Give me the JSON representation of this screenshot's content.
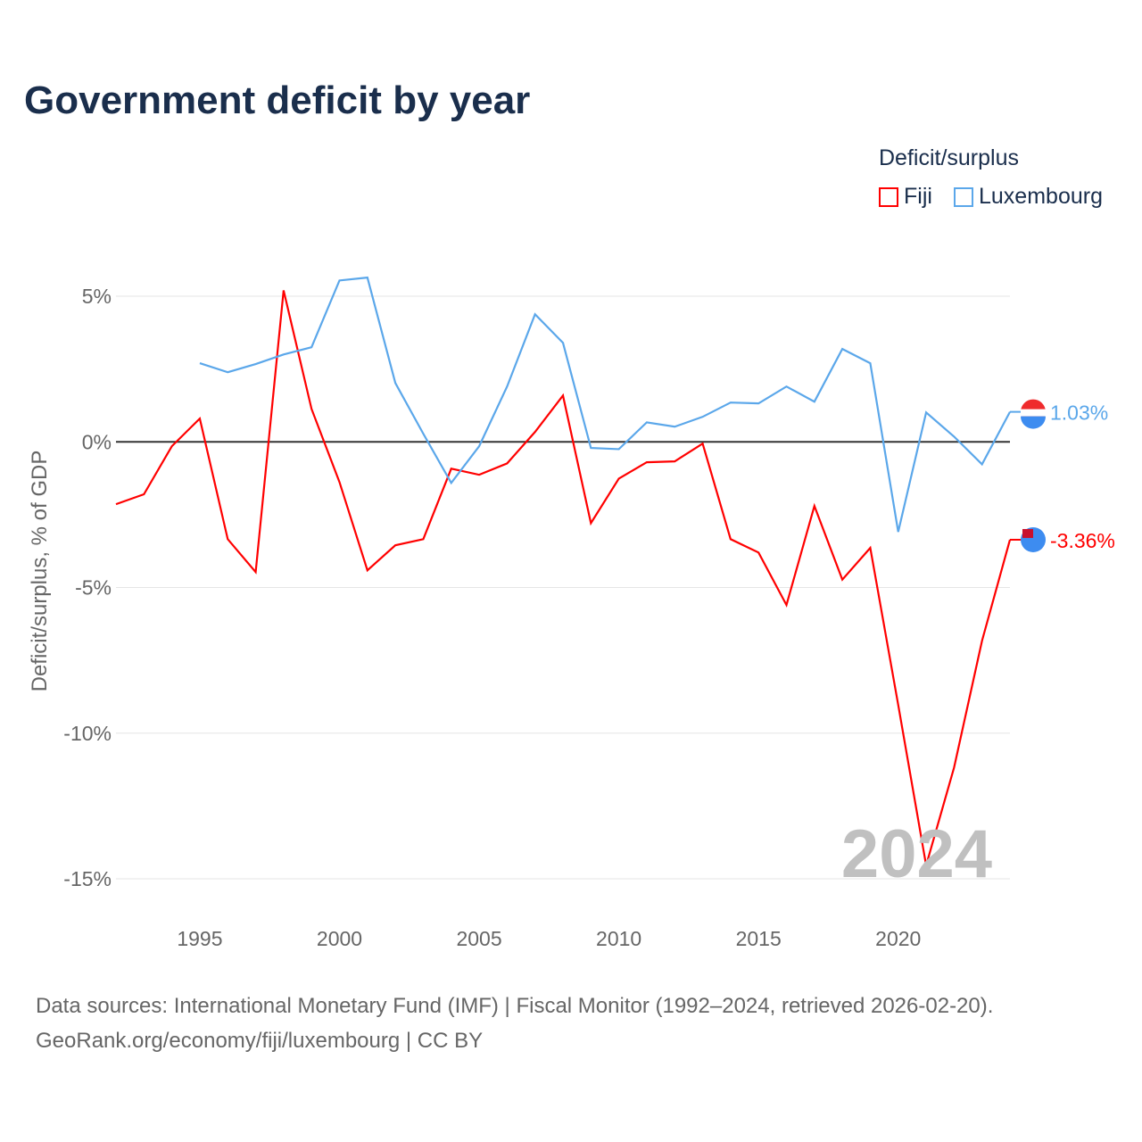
{
  "title": "Government deficit by year",
  "legend": {
    "title": "Deficit/surplus",
    "items": [
      "Fiji",
      "Luxembourg"
    ]
  },
  "watermark_year": "2024",
  "source": {
    "line1": "Data sources: International Monetary Fund (IMF) | Fiscal Monitor (1992–2024, retrieved 2026-02-20).",
    "line2": "GeoRank.org/economy/fiji/luxembourg | CC BY"
  },
  "chart_data": {
    "type": "line",
    "title": "Government deficit by year",
    "ylabel": "Deficit/surplus, % of GDP",
    "xlabel": "",
    "xlim": [
      1992,
      2024
    ],
    "ylim": [
      -15,
      5
    ],
    "yticks": [
      5,
      0,
      -5,
      -10,
      -15
    ],
    "ytick_labels": [
      "5%",
      "0%",
      "-5%",
      "-10%",
      "-15%"
    ],
    "xticks": [
      1995,
      2000,
      2005,
      2010,
      2015,
      2020
    ],
    "grid": true,
    "legend_position": "top-right",
    "series": [
      {
        "name": "Fiji",
        "color": "#ff0000",
        "end_label": "-3.36%",
        "x": [
          1992,
          1993,
          1994,
          1995,
          1996,
          1997,
          1998,
          1999,
          2000,
          2001,
          2002,
          2003,
          2004,
          2005,
          2006,
          2007,
          2008,
          2009,
          2010,
          2011,
          2012,
          2013,
          2014,
          2015,
          2016,
          2017,
          2018,
          2019,
          2020,
          2021,
          2022,
          2023,
          2024
        ],
        "values": [
          -2.14,
          -1.8,
          -0.15,
          0.8,
          -3.34,
          -4.47,
          5.2,
          1.13,
          -1.38,
          -4.41,
          -3.55,
          -3.34,
          -0.92,
          -1.13,
          -0.74,
          0.34,
          1.59,
          -2.79,
          -1.26,
          -0.7,
          -0.67,
          -0.06,
          -3.34,
          -3.8,
          -5.6,
          -2.2,
          -4.73,
          -3.64,
          -9.03,
          -14.54,
          -11.18,
          -6.83,
          -3.36
        ]
      },
      {
        "name": "Luxembourg",
        "color": "#5ba7ea",
        "end_label": "1.03%",
        "x": [
          1995,
          1996,
          1997,
          1998,
          1999,
          2000,
          2001,
          2002,
          2003,
          2004,
          2005,
          2006,
          2007,
          2008,
          2009,
          2010,
          2011,
          2012,
          2013,
          2014,
          2015,
          2016,
          2017,
          2018,
          2019,
          2020,
          2021,
          2022,
          2023,
          2024
        ],
        "values": [
          2.7,
          2.39,
          2.67,
          3.0,
          3.25,
          5.54,
          5.64,
          2.02,
          0.28,
          -1.41,
          -0.15,
          1.9,
          4.38,
          3.4,
          -0.21,
          -0.25,
          0.67,
          0.52,
          0.86,
          1.35,
          1.32,
          1.9,
          1.38,
          3.19,
          2.7,
          -3.09,
          1.01,
          0.18,
          -0.77,
          1.03
        ]
      }
    ]
  }
}
